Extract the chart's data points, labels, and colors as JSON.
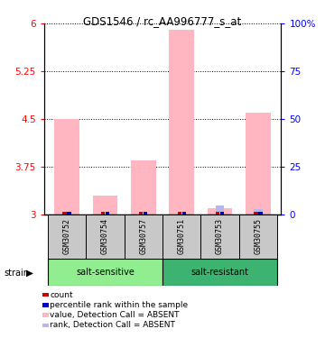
{
  "title": "GDS1546 / rc_AA996777_s_at",
  "samples": [
    "GSM30752",
    "GSM30754",
    "GSM30757",
    "GSM30751",
    "GSM30753",
    "GSM30755"
  ],
  "ylim": [
    3.0,
    6.0
  ],
  "yticks_left": [
    3.0,
    3.75,
    4.5,
    5.25,
    6.0
  ],
  "ytick_labels_left": [
    "3",
    "3.75",
    "4.5",
    "5.25",
    "6"
  ],
  "yticks_right": [
    0,
    25,
    50,
    75,
    100
  ],
  "ytick_labels_right": [
    "0",
    "25",
    "50",
    "75",
    "100%"
  ],
  "bar_values": [
    4.5,
    3.3,
    3.85,
    5.9,
    3.1,
    4.6
  ],
  "rank_values": [
    3.05,
    3.05,
    3.05,
    3.05,
    3.15,
    3.08
  ],
  "bar_color": "#FFB6C1",
  "rank_color": "#B8B8E8",
  "count_color": "#CC0000",
  "percentile_color": "#0000CC",
  "background_color": "#ffffff",
  "group1_color": "#90EE90",
  "group2_color": "#3CB371",
  "bar_width": 0.65,
  "rank_bar_width": 0.22
}
